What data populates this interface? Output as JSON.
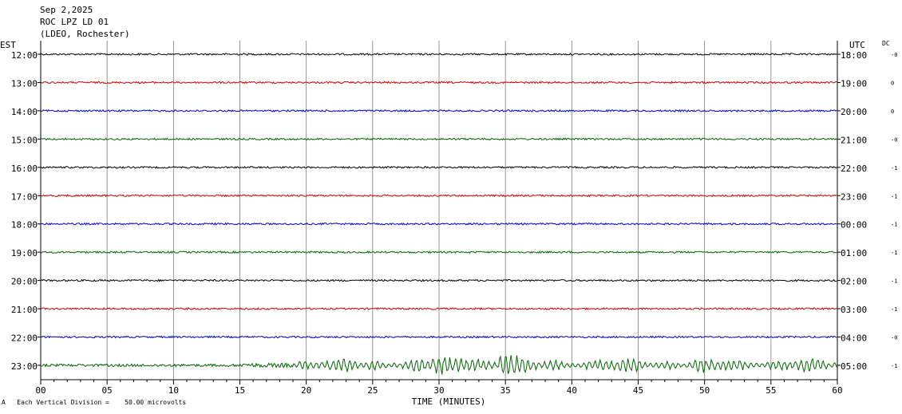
{
  "header": {
    "date": "Sep 2,2025",
    "station": "ROC LPZ LD 01",
    "network": "(LDEO, Rochester)"
  },
  "footnote": {
    "scale_text": "Each Vertical Division =    50.00 microvolts",
    "mark": "A"
  },
  "chart_data": {
    "type": "line",
    "left_axis_title": "EST",
    "right_axis_title": "UTC",
    "dc_title": "DC",
    "xlabel": "TIME (MINUTES)",
    "xlim": [
      0,
      60
    ],
    "x_ticks": [
      "00",
      "05",
      "10",
      "15",
      "20",
      "25",
      "30",
      "35",
      "40",
      "45",
      "50",
      "55",
      "60"
    ],
    "grid": true,
    "rows": [
      {
        "est": "12:00",
        "utc": "18:00",
        "dc": "-0",
        "color": "#000000",
        "activity": "quiet"
      },
      {
        "est": "13:00",
        "utc": "19:00",
        "dc": "0",
        "color": "#cc0000",
        "activity": "quiet"
      },
      {
        "est": "14:00",
        "utc": "20:00",
        "dc": "0",
        "color": "#0000cc",
        "activity": "quiet"
      },
      {
        "est": "15:00",
        "utc": "21:00",
        "dc": "-0",
        "color": "#006600",
        "activity": "quiet"
      },
      {
        "est": "16:00",
        "utc": "22:00",
        "dc": "-1",
        "color": "#000000",
        "activity": "quiet"
      },
      {
        "est": "17:00",
        "utc": "23:00",
        "dc": "-1",
        "color": "#cc0000",
        "activity": "quiet"
      },
      {
        "est": "18:00",
        "utc": "00:00",
        "dc": "-1",
        "color": "#0000cc",
        "activity": "quiet"
      },
      {
        "est": "19:00",
        "utc": "01:00",
        "dc": "-1",
        "color": "#006600",
        "activity": "quiet"
      },
      {
        "est": "20:00",
        "utc": "02:00",
        "dc": "-1",
        "color": "#000000",
        "activity": "quiet"
      },
      {
        "est": "21:00",
        "utc": "03:00",
        "dc": "-1",
        "color": "#cc0000",
        "activity": "quiet"
      },
      {
        "est": "22:00",
        "utc": "04:00",
        "dc": "-0",
        "color": "#0000cc",
        "activity": "quiet"
      },
      {
        "est": "23:00",
        "utc": "05:00",
        "dc": "-1",
        "color": "#006600",
        "activity": "event"
      }
    ]
  }
}
